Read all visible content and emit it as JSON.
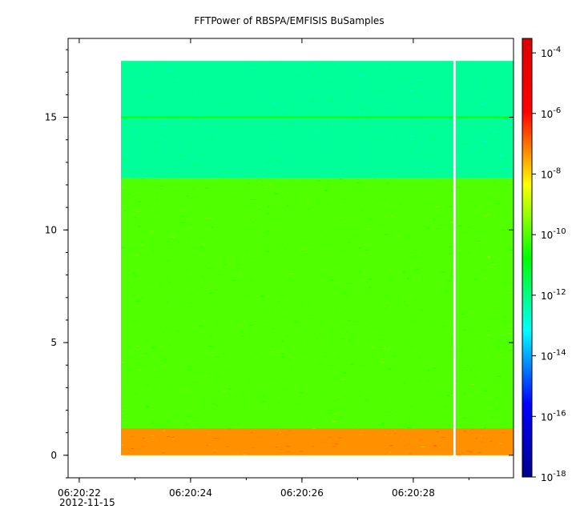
{
  "chart_data": {
    "type": "heatmap",
    "title": "FFTPower of RBSPA/EMFISIS  BuSamples",
    "xlabel": "",
    "ylabel": "",
    "date": "2012-11-15",
    "xlim": [
      "06:20:21.8",
      "06:20:29.8"
    ],
    "ylim": [
      -1.0,
      18.5
    ],
    "x_ticks": [
      {
        "label": "06:20:22",
        "time": "06:20:22"
      },
      {
        "label": "06:20:24",
        "time": "06:20:24"
      },
      {
        "label": "06:20:26",
        "time": "06:20:26"
      },
      {
        "label": "06:20:28",
        "time": "06:20:28"
      }
    ],
    "y_ticks": [
      {
        "label": "0",
        "value": 0
      },
      {
        "label": "5",
        "value": 5
      },
      {
        "label": "10",
        "value": 10
      },
      {
        "label": "15",
        "value": 15
      }
    ],
    "data_time_range": [
      "06:20:22.75",
      "06:20:29.8"
    ],
    "data_gap": {
      "start": "06:20:28.72",
      "end": "06:20:28.76"
    },
    "frequency_bands": [
      {
        "y_from": 0.0,
        "y_to": 1.2,
        "log10_power": -7.3
      },
      {
        "y_from": 1.2,
        "y_to": 12.3,
        "log10_power": -10.0
      },
      {
        "y_from": 12.3,
        "y_to": 17.5,
        "log10_power": -12.2
      }
    ],
    "line_features": [
      {
        "y": 15.0,
        "log10_power": -10.6
      }
    ],
    "colorbar": {
      "scale": "log",
      "range": [
        1e-18,
        0.0003
      ],
      "colormap": [
        "#00008b",
        "#0000ff",
        "#00ffff",
        "#00ff00",
        "#ffff00",
        "#ff0000",
        "#dc0000"
      ],
      "ticks": [
        {
          "base": "10",
          "exp": "-4",
          "value": 0.0001
        },
        {
          "base": "10",
          "exp": "-6",
          "value": 1e-06
        },
        {
          "base": "10",
          "exp": "-8",
          "value": 1e-08
        },
        {
          "base": "10",
          "exp": "-10",
          "value": 1e-10
        },
        {
          "base": "10",
          "exp": "-12",
          "value": 1e-12
        },
        {
          "base": "10",
          "exp": "-14",
          "value": 1e-14
        },
        {
          "base": "10",
          "exp": "-16",
          "value": 1e-16
        },
        {
          "base": "10",
          "exp": "-18",
          "value": 1e-18
        }
      ]
    }
  }
}
